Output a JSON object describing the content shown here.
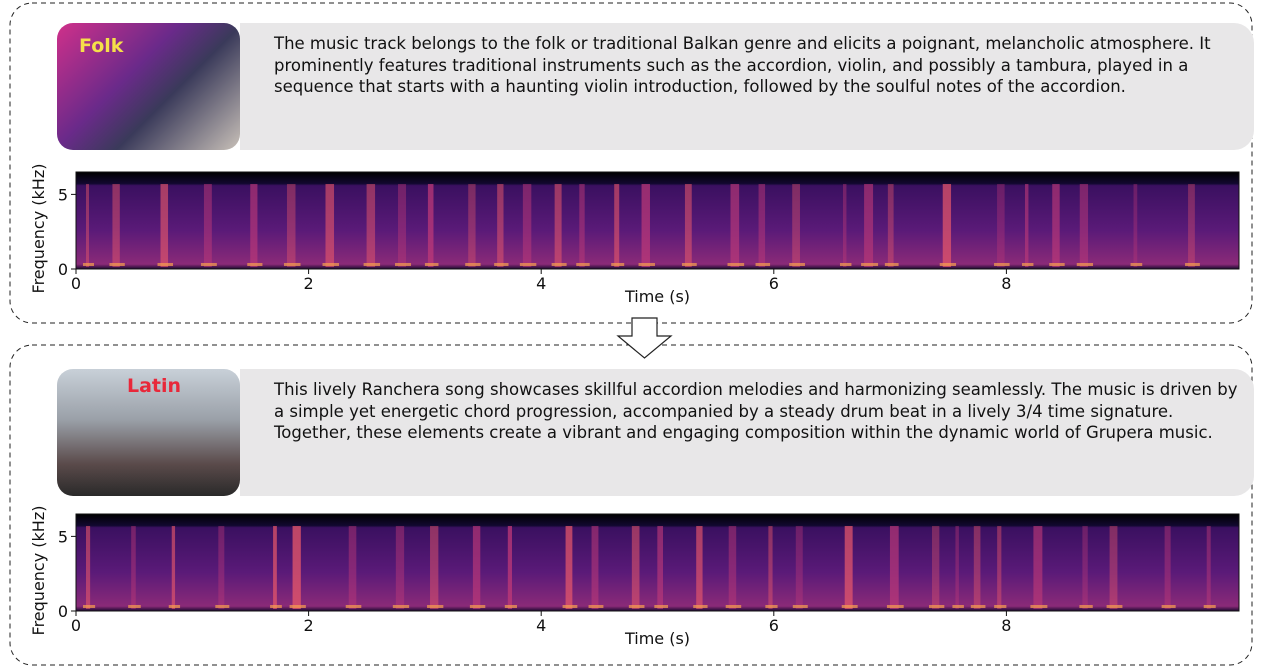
{
  "panels": [
    {
      "tag": "Folk",
      "description": "The music track belongs to the folk or traditional Balkan genre and elicits a poignant, melancholic atmosphere. It prominently features traditional instruments such as the accordion, violin, and possibly a tambura, played in a sequence that starts with a haunting violin introduction, followed by the soulful notes of the accordion.",
      "spectrogram": {
        "xlabel": "Time (s)",
        "ylabel": "Frequency (kHz)",
        "xlim": [
          0,
          10
        ],
        "ylim": [
          0,
          6.5
        ],
        "xticks": [
          0,
          2,
          4,
          6,
          8
        ],
        "yticks": [
          0,
          5
        ]
      }
    },
    {
      "tag": "Latin",
      "description": "This lively Ranchera song showcases skillful accordion melodies and harmonizing seamlessly. The music is driven by a simple yet energetic chord progression, accompanied by a steady drum beat in a lively 3/4 time signature. Together, these elements create a vibrant and engaging composition within the dynamic world of Grupera music.",
      "spectrogram": {
        "xlabel": "Time (s)",
        "ylabel": "Frequency (kHz)",
        "xlim": [
          0,
          10
        ],
        "ylim": [
          0,
          6.5
        ],
        "xticks": [
          0,
          2,
          4,
          6,
          8
        ],
        "yticks": [
          0,
          5
        ]
      }
    }
  ]
}
